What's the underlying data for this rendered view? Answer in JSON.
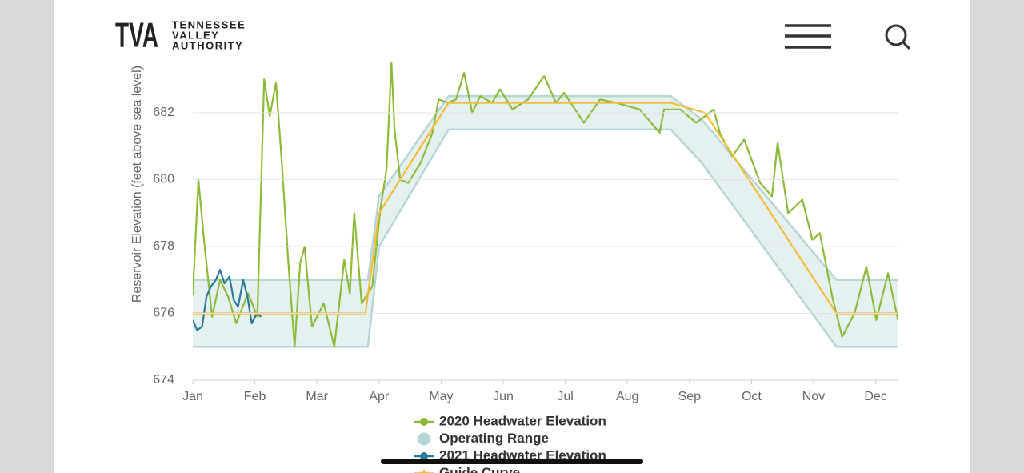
{
  "header": {
    "logo": "TVA",
    "brand_lines": [
      "TENNESSEE",
      "VALLEY",
      "AUTHORITY"
    ]
  },
  "chart_data": {
    "type": "line",
    "y_label": "Reservoir Elevation (feet above sea level)",
    "xlim": [
      0,
      11.37
    ],
    "xticks": [
      {
        "value": 0,
        "label": "Jan"
      },
      {
        "value": 1,
        "label": "Feb"
      },
      {
        "value": 2,
        "label": "Mar"
      },
      {
        "value": 3,
        "label": "Apr"
      },
      {
        "value": 4,
        "label": "May"
      },
      {
        "value": 5,
        "label": "Jun"
      },
      {
        "value": 6,
        "label": "Jul"
      },
      {
        "value": 7,
        "label": "Aug"
      },
      {
        "value": 8,
        "label": "Sep"
      },
      {
        "value": 9,
        "label": "Oct"
      },
      {
        "value": 10,
        "label": "Nov"
      },
      {
        "value": 11,
        "label": "Dec"
      }
    ],
    "ylim": [
      674,
      683.4
    ],
    "yticks": [
      674,
      676,
      678,
      680,
      682
    ],
    "grid": true,
    "series": [
      {
        "name": "2020 Headwater Elevation",
        "color": "#8cbb3a",
        "x": [
          0,
          0.09,
          0.18,
          0.31,
          0.44,
          0.57,
          0.7,
          0.89,
          1.04,
          1.15,
          1.24,
          1.34,
          1.43,
          1.54,
          1.64,
          1.73,
          1.8,
          1.92,
          2.11,
          2.28,
          2.44,
          2.53,
          2.6,
          2.72,
          2.89,
          3.02,
          3.12,
          3.2,
          3.25,
          3.34,
          3.47,
          3.67,
          3.86,
          3.96,
          4.11,
          4.24,
          4.37,
          4.5,
          4.63,
          4.82,
          4.95,
          5.15,
          5.4,
          5.66,
          5.85,
          5.98,
          6.3,
          6.56,
          6.82,
          7.2,
          7.52,
          7.59,
          7.85,
          8.11,
          8.39,
          8.49,
          8.69,
          8.88,
          9.14,
          9.33,
          9.42,
          9.59,
          9.82,
          9.98,
          10.1,
          10.3,
          10.46,
          10.66,
          10.85,
          11.01,
          11.2,
          11.36
        ],
        "values": [
          676.56,
          680,
          678.2,
          675.9,
          677,
          676.5,
          675.7,
          676.6,
          675.9,
          683,
          681.9,
          682.9,
          680.6,
          677.5,
          675,
          677.5,
          678,
          675.6,
          676.3,
          675,
          677.6,
          676.6,
          679,
          676.3,
          676.8,
          679.1,
          680.3,
          683.5,
          681.5,
          680,
          679.9,
          680.5,
          681.4,
          682.4,
          682.3,
          682.4,
          683.2,
          682,
          682.5,
          682.3,
          682.7,
          682.1,
          682.4,
          683.1,
          682.3,
          682.6,
          681.7,
          682.4,
          682.3,
          682.1,
          681.4,
          682.1,
          682.1,
          681.7,
          682.1,
          681.4,
          680.7,
          681.2,
          679.9,
          679.5,
          681.1,
          679,
          679.4,
          678.2,
          678.4,
          676.5,
          675.3,
          676,
          677.4,
          675.8,
          677.2,
          675.8
        ]
      },
      {
        "name": "Operating Range",
        "color": "#b5d6d6",
        "x": [
          0,
          2.82,
          3,
          4.12,
          7.7,
          8.2,
          10.37,
          11.37
        ],
        "values": [
          677,
          677,
          679.5,
          682.5,
          682.5,
          681.8,
          677,
          677
        ],
        "lower": [
          675,
          675,
          678,
          681.5,
          681.5,
          680.5,
          675,
          675
        ]
      },
      {
        "name": "2021 Headwater Elevation",
        "color": "#2b7a99",
        "x": [
          0,
          0.07,
          0.15,
          0.22,
          0.29,
          0.37,
          0.44,
          0.51,
          0.59,
          0.66,
          0.73,
          0.81,
          0.88,
          0.95,
          1.03,
          1.1
        ],
        "values": [
          675.8,
          675.5,
          675.6,
          676.5,
          676.8,
          677,
          677.3,
          676.9,
          677.1,
          676.4,
          676.2,
          677,
          676.5,
          675.7,
          676,
          675.9
        ]
      },
      {
        "name": "Guide Curve",
        "color": "#f5b935",
        "x": [
          0,
          2.78,
          3,
          4.12,
          7.7,
          8.25,
          10.37,
          11.37
        ],
        "values": [
          676,
          676,
          679,
          682.3,
          682.3,
          682,
          676,
          676
        ]
      }
    ]
  }
}
